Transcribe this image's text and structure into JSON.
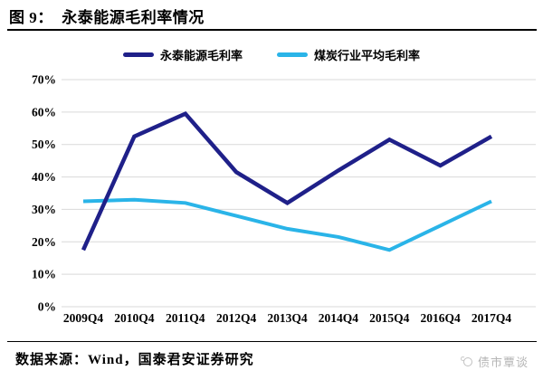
{
  "header": {
    "title": "图 9：  永泰能源毛利率情况"
  },
  "chart_data": {
    "type": "line",
    "title": "永泰能源毛利率情况",
    "categories": [
      "2009Q4",
      "2010Q4",
      "2011Q4",
      "2012Q4",
      "2013Q4",
      "2014Q4",
      "2015Q4",
      "2016Q4",
      "2017Q4"
    ],
    "series": [
      {
        "name": "永泰能源毛利率",
        "color": "#1f2089",
        "stroke_width": 4.5,
        "values": [
          17.5,
          52.5,
          59.5,
          41.5,
          32,
          42,
          51.5,
          43.5,
          52.5
        ]
      },
      {
        "name": "煤炭行业平均毛利率",
        "color": "#2ab4e8",
        "stroke_width": 4,
        "values": [
          32.5,
          33,
          32,
          28,
          24,
          21.5,
          17.5,
          25,
          32.5
        ]
      }
    ],
    "xlabel": "",
    "ylabel": "",
    "ylim": [
      0,
      70
    ],
    "y_tick_step": 10,
    "y_ticks": [
      "0%",
      "10%",
      "20%",
      "30%",
      "40%",
      "50%",
      "60%",
      "70%"
    ],
    "grid": "horizontal",
    "legend_position": "top"
  },
  "footer": {
    "source_text": "数据来源：Wind，国泰君安证券研究",
    "watermark": "债市覃谈"
  },
  "colors": {
    "grid": "#d9d9d9",
    "axis_text": "#000000",
    "rule": "#000000",
    "watermark": "#b5b5b5"
  }
}
